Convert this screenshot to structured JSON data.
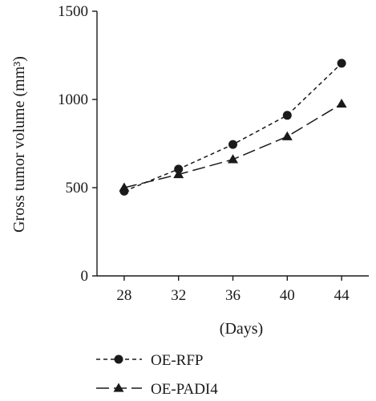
{
  "chart_data": {
    "type": "line",
    "x": [
      28,
      32,
      36,
      40,
      44
    ],
    "xlim": [
      26,
      46
    ],
    "ylim": [
      0,
      1500
    ],
    "x_ticks": [
      28,
      32,
      36,
      40,
      44
    ],
    "y_ticks": [
      0,
      500,
      1000,
      1500
    ],
    "xlabel": "(Days)",
    "ylabel": "Gross tumor volume (mm³)",
    "grid": false,
    "legend_position": "bottom-left",
    "series": [
      {
        "name": "OE-RFP",
        "values": [
          480,
          605,
          745,
          910,
          1205
        ],
        "marker": "circle",
        "dash": "short-dash",
        "color": "#1a1a1a"
      },
      {
        "name": "OE-PADI4",
        "values": [
          500,
          575,
          660,
          790,
          975
        ],
        "marker": "triangle",
        "dash": "long-dash",
        "color": "#1a1a1a"
      }
    ]
  }
}
